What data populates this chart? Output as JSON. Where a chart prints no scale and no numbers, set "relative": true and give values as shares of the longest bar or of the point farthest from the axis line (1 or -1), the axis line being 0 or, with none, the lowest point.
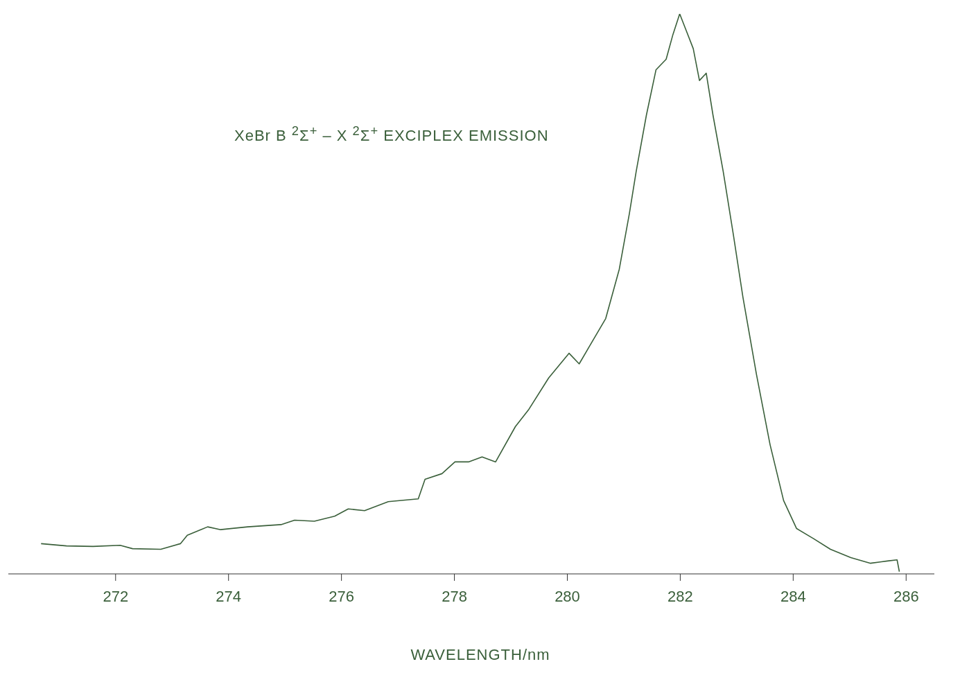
{
  "chart_data": {
    "type": "line",
    "relative": true,
    "xlabel": "WAVELENGTH/nm",
    "annotations": [
      "XeBr B $^{2}$Σ$^{+}$ – X $^{2}$Σ$^{+}$ EXCIPLEX EMISSION"
    ],
    "xlim": [
      270.1,
      286.5
    ],
    "xticks": [
      272,
      274,
      276,
      278,
      280,
      282,
      284,
      286
    ],
    "grid": false,
    "legend": false,
    "marker": "none",
    "line_style": "solid",
    "series": [
      {
        "color": "#3a5f3a",
        "x": [
          270.68,
          271.13,
          271.6,
          272.08,
          272.3,
          272.8,
          273.15,
          273.27,
          273.63,
          273.86,
          274.34,
          274.93,
          275.17,
          275.52,
          275.88,
          276.12,
          276.41,
          276.83,
          277.36,
          277.48,
          277.78,
          278.01,
          278.25,
          278.49,
          278.73,
          279.08,
          279.32,
          279.67,
          280.03,
          280.21,
          280.39,
          280.68,
          280.92,
          281.1,
          281.22,
          281.4,
          281.57,
          281.75,
          281.87,
          281.99,
          282.11,
          282.23,
          282.34,
          282.46,
          282.58,
          282.76,
          282.94,
          283.11,
          283.35,
          283.59,
          283.83,
          284.06,
          284.36,
          284.66,
          285.02,
          285.37,
          285.67,
          285.84,
          285.88
        ],
        "values": [
          0.054,
          0.05,
          0.049,
          0.051,
          0.045,
          0.044,
          0.054,
          0.069,
          0.084,
          0.079,
          0.084,
          0.088,
          0.096,
          0.094,
          0.103,
          0.116,
          0.113,
          0.129,
          0.134,
          0.169,
          0.179,
          0.2,
          0.2,
          0.209,
          0.2,
          0.263,
          0.294,
          0.35,
          0.394,
          0.375,
          0.406,
          0.456,
          0.544,
          0.644,
          0.719,
          0.819,
          0.9,
          0.919,
          0.963,
          1,
          0.969,
          0.938,
          0.881,
          0.894,
          0.819,
          0.719,
          0.606,
          0.494,
          0.356,
          0.231,
          0.131,
          0.081,
          0.063,
          0.044,
          0.029,
          0.019,
          0.023,
          0.025,
          0.004
        ]
      }
    ]
  }
}
